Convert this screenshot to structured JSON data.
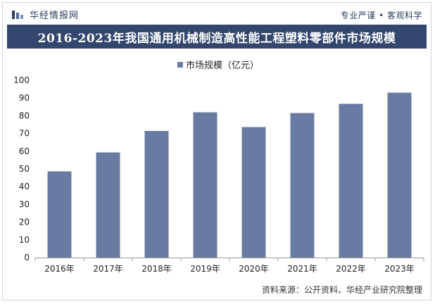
{
  "header": {
    "brand_name": "华经情报网",
    "tagline": "专业严谨 • 客观科学"
  },
  "footer": {
    "source": "资料来源：公开资料、华经产业研究院整理"
  },
  "colors": {
    "bar": "#6a7ba3",
    "title_bg": "#33466e",
    "brand": "#2c3f63"
  },
  "chart_data": {
    "type": "bar",
    "title": "2016-2023年我国通用机械制造高性能工程塑料零部件市场规模",
    "categories": [
      "2016年",
      "2017年",
      "2018年",
      "2019年",
      "2020年",
      "2021年",
      "2022年",
      "2023年"
    ],
    "series": [
      {
        "name": "市场规模（亿元）",
        "values": [
          48.6,
          59.3,
          71.4,
          81.9,
          73.6,
          81.5,
          86.7,
          93.0
        ]
      }
    ],
    "ylim": [
      0,
      100
    ],
    "yticks": [
      0,
      10,
      20,
      30,
      40,
      50,
      60,
      70,
      80,
      90,
      100
    ],
    "grid": false,
    "legend": "top-center"
  }
}
